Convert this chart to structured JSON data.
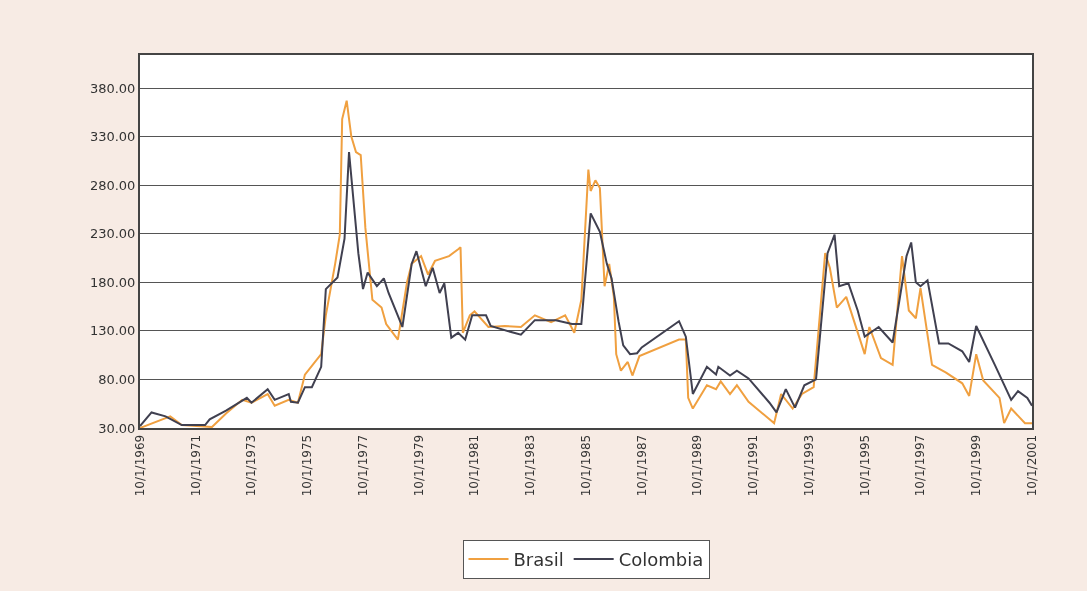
{
  "chart_data": {
    "type": "line",
    "xlim": [
      "1969-10-01",
      "2001-10-01"
    ],
    "xticks": [
      {
        "value": "1969-10-01",
        "label": "10/1/1969"
      },
      {
        "value": "1971-10-01",
        "label": "10/1/1971"
      },
      {
        "value": "1973-10-01",
        "label": "10/1/1973"
      },
      {
        "value": "1975-10-01",
        "label": "10/1/1975"
      },
      {
        "value": "1977-10-01",
        "label": "10/1/1977"
      },
      {
        "value": "1979-10-01",
        "label": "10/1/1979"
      },
      {
        "value": "1981-10-01",
        "label": "10/1/1981"
      },
      {
        "value": "1983-10-01",
        "label": "10/1/1983"
      },
      {
        "value": "1985-10-01",
        "label": "10/1/1985"
      },
      {
        "value": "1987-10-01",
        "label": "10/1/1987"
      },
      {
        "value": "1989-10-01",
        "label": "10/1/1989"
      },
      {
        "value": "1991-10-01",
        "label": "10/1/1991"
      },
      {
        "value": "1993-10-01",
        "label": "10/1/1993"
      },
      {
        "value": "1995-10-01",
        "label": "10/1/1995"
      },
      {
        "value": "1997-10-01",
        "label": "10/1/1997"
      },
      {
        "value": "1999-10-01",
        "label": "10/1/1999"
      },
      {
        "value": "2001-10-01",
        "label": "10/1/2001"
      }
    ],
    "ylim": [
      30,
      414
    ],
    "yticks": [
      {
        "value": 30,
        "label": "30.00"
      },
      {
        "value": 80,
        "label": "80.00"
      },
      {
        "value": 130,
        "label": "130.00"
      },
      {
        "value": 180,
        "label": "180.00"
      },
      {
        "value": 230,
        "label": "230.00"
      },
      {
        "value": 280,
        "label": "280.00"
      },
      {
        "value": 330,
        "label": "330.00"
      },
      {
        "value": 380,
        "label": "380.00"
      }
    ],
    "grid": "y",
    "legend": "bottom",
    "marker": "none",
    "line_style": "solid",
    "series": [
      {
        "name": "Brasil",
        "color": "#f0a040",
        "x": [
          "1969-10",
          "1970-11",
          "1971-04",
          "1972-05",
          "1972-11",
          "1973-06",
          "1973-10",
          "1974-05",
          "1974-08",
          "1975-02",
          "1975-06",
          "1975-09",
          "1976-04",
          "1976-06",
          "1976-10",
          "1976-12",
          "1977-01",
          "1977-03",
          "1977-05",
          "1977-07",
          "1977-09",
          "1977-11",
          "1978-02",
          "1978-06",
          "1978-08",
          "1979-01",
          "1979-05",
          "1979-07",
          "1979-11",
          "1980-02",
          "1980-05",
          "1980-11",
          "1981-03",
          "1981-04",
          "1981-05",
          "1981-08",
          "1981-10",
          "1982-04",
          "1982-11",
          "1983-06",
          "1983-12",
          "1984-07",
          "1985-01",
          "1985-05",
          "1985-08",
          "1985-11",
          "1985-12",
          "1986-02",
          "1986-04",
          "1986-06",
          "1986-08",
          "1986-10",
          "1986-11",
          "1987-01",
          "1987-04",
          "1987-06",
          "1987-09",
          "1989-02",
          "1989-05",
          "1989-06",
          "1989-08",
          "1990-02",
          "1990-06",
          "1990-08",
          "1990-12",
          "1991-03",
          "1991-08",
          "1992-05",
          "1992-07",
          "1992-10",
          "1993-03",
          "1993-07",
          "1993-12",
          "1994-05",
          "1994-07",
          "1994-10",
          "1995-02",
          "1995-10",
          "1995-12",
          "1996-05",
          "1996-10",
          "1997-02",
          "1997-05",
          "1997-08",
          "1997-10",
          "1998-03",
          "1998-09",
          "1999-04",
          "1999-07",
          "1999-10",
          "2000-01",
          "2000-08",
          "2000-10",
          "2001-01",
          "2001-07",
          "2001-10"
        ],
        "values": [
          30,
          42,
          33,
          31,
          45,
          59,
          56,
          65,
          53,
          59,
          56,
          85,
          106,
          146,
          199,
          229,
          348,
          367,
          330,
          314,
          311,
          236,
          162,
          154,
          137,
          121,
          180,
          199,
          207,
          188,
          202,
          207,
          214,
          216,
          128,
          146,
          150,
          134,
          135,
          134,
          146,
          139,
          146,
          128,
          162,
          296,
          274,
          285,
          277,
          176,
          199,
          165,
          106,
          89,
          98,
          84,
          104,
          121,
          121,
          61,
          50,
          74,
          70,
          78,
          65,
          74,
          57,
          39,
          35,
          65,
          50,
          65,
          72,
          210,
          195,
          154,
          165,
          106,
          134,
          102,
          95,
          207,
          151,
          143,
          174,
          95,
          87,
          76,
          63,
          106,
          79,
          61,
          35,
          50,
          35,
          35
        ]
      },
      {
        "name": "Colombia",
        "color": "#404050",
        "x": [
          "1969-10",
          "1970-03",
          "1970-09",
          "1971-04",
          "1972-02",
          "1972-04",
          "1972-11",
          "1973-08",
          "1973-10",
          "1974-05",
          "1974-08",
          "1975-02",
          "1975-03",
          "1975-06",
          "1975-09",
          "1975-12",
          "1976-04",
          "1976-06",
          "1976-11",
          "1977-02",
          "1977-04",
          "1977-08",
          "1977-10",
          "1977-12",
          "1978-04",
          "1978-07",
          "1978-09",
          "1979-03",
          "1979-07",
          "1979-09",
          "1980-01",
          "1980-04",
          "1980-07",
          "1980-09",
          "1980-12",
          "1981-03",
          "1981-06",
          "1981-09",
          "1982-03",
          "1982-05",
          "1983-03",
          "1983-06",
          "1983-12",
          "1984-09",
          "1985-04",
          "1985-08",
          "1985-12",
          "1986-04",
          "1986-07",
          "1986-09",
          "1986-12",
          "1987-02",
          "1987-05",
          "1987-08",
          "1987-10",
          "1989-02",
          "1989-05",
          "1989-08",
          "1990-02",
          "1990-06",
          "1990-07",
          "1990-12",
          "1991-03",
          "1991-08",
          "1992-05",
          "1992-08",
          "1992-12",
          "1993-04",
          "1993-08",
          "1994-01",
          "1994-06",
          "1994-09",
          "1994-11",
          "1995-03",
          "1995-07",
          "1995-10",
          "1996-04",
          "1996-10",
          "1997-04",
          "1997-06",
          "1997-08",
          "1997-10",
          "1998-01",
          "1998-06",
          "1998-10",
          "1999-04",
          "1999-07",
          "1999-10",
          "2000-06",
          "2001-01",
          "2001-04",
          "2001-08",
          "2001-10"
        ],
        "values": [
          32,
          46,
          42,
          33,
          33,
          39,
          48,
          61,
          56,
          70,
          59,
          65,
          57,
          56,
          72,
          72,
          93,
          173,
          185,
          225,
          314,
          210,
          173,
          190,
          176,
          184,
          169,
          134,
          199,
          212,
          176,
          195,
          169,
          179,
          123,
          128,
          121,
          146,
          146,
          135,
          128,
          126,
          141,
          141,
          137,
          137,
          251,
          232,
          199,
          184,
          140,
          115,
          106,
          107,
          113,
          140,
          124,
          65,
          93,
          85,
          93,
          84,
          89,
          81,
          56,
          46,
          70,
          51,
          74,
          80,
          210,
          229,
          176,
          179,
          151,
          124,
          134,
          118,
          207,
          221,
          180,
          176,
          182,
          117,
          117,
          109,
          98,
          135,
          95,
          59,
          68,
          61,
          53
        ]
      }
    ]
  }
}
